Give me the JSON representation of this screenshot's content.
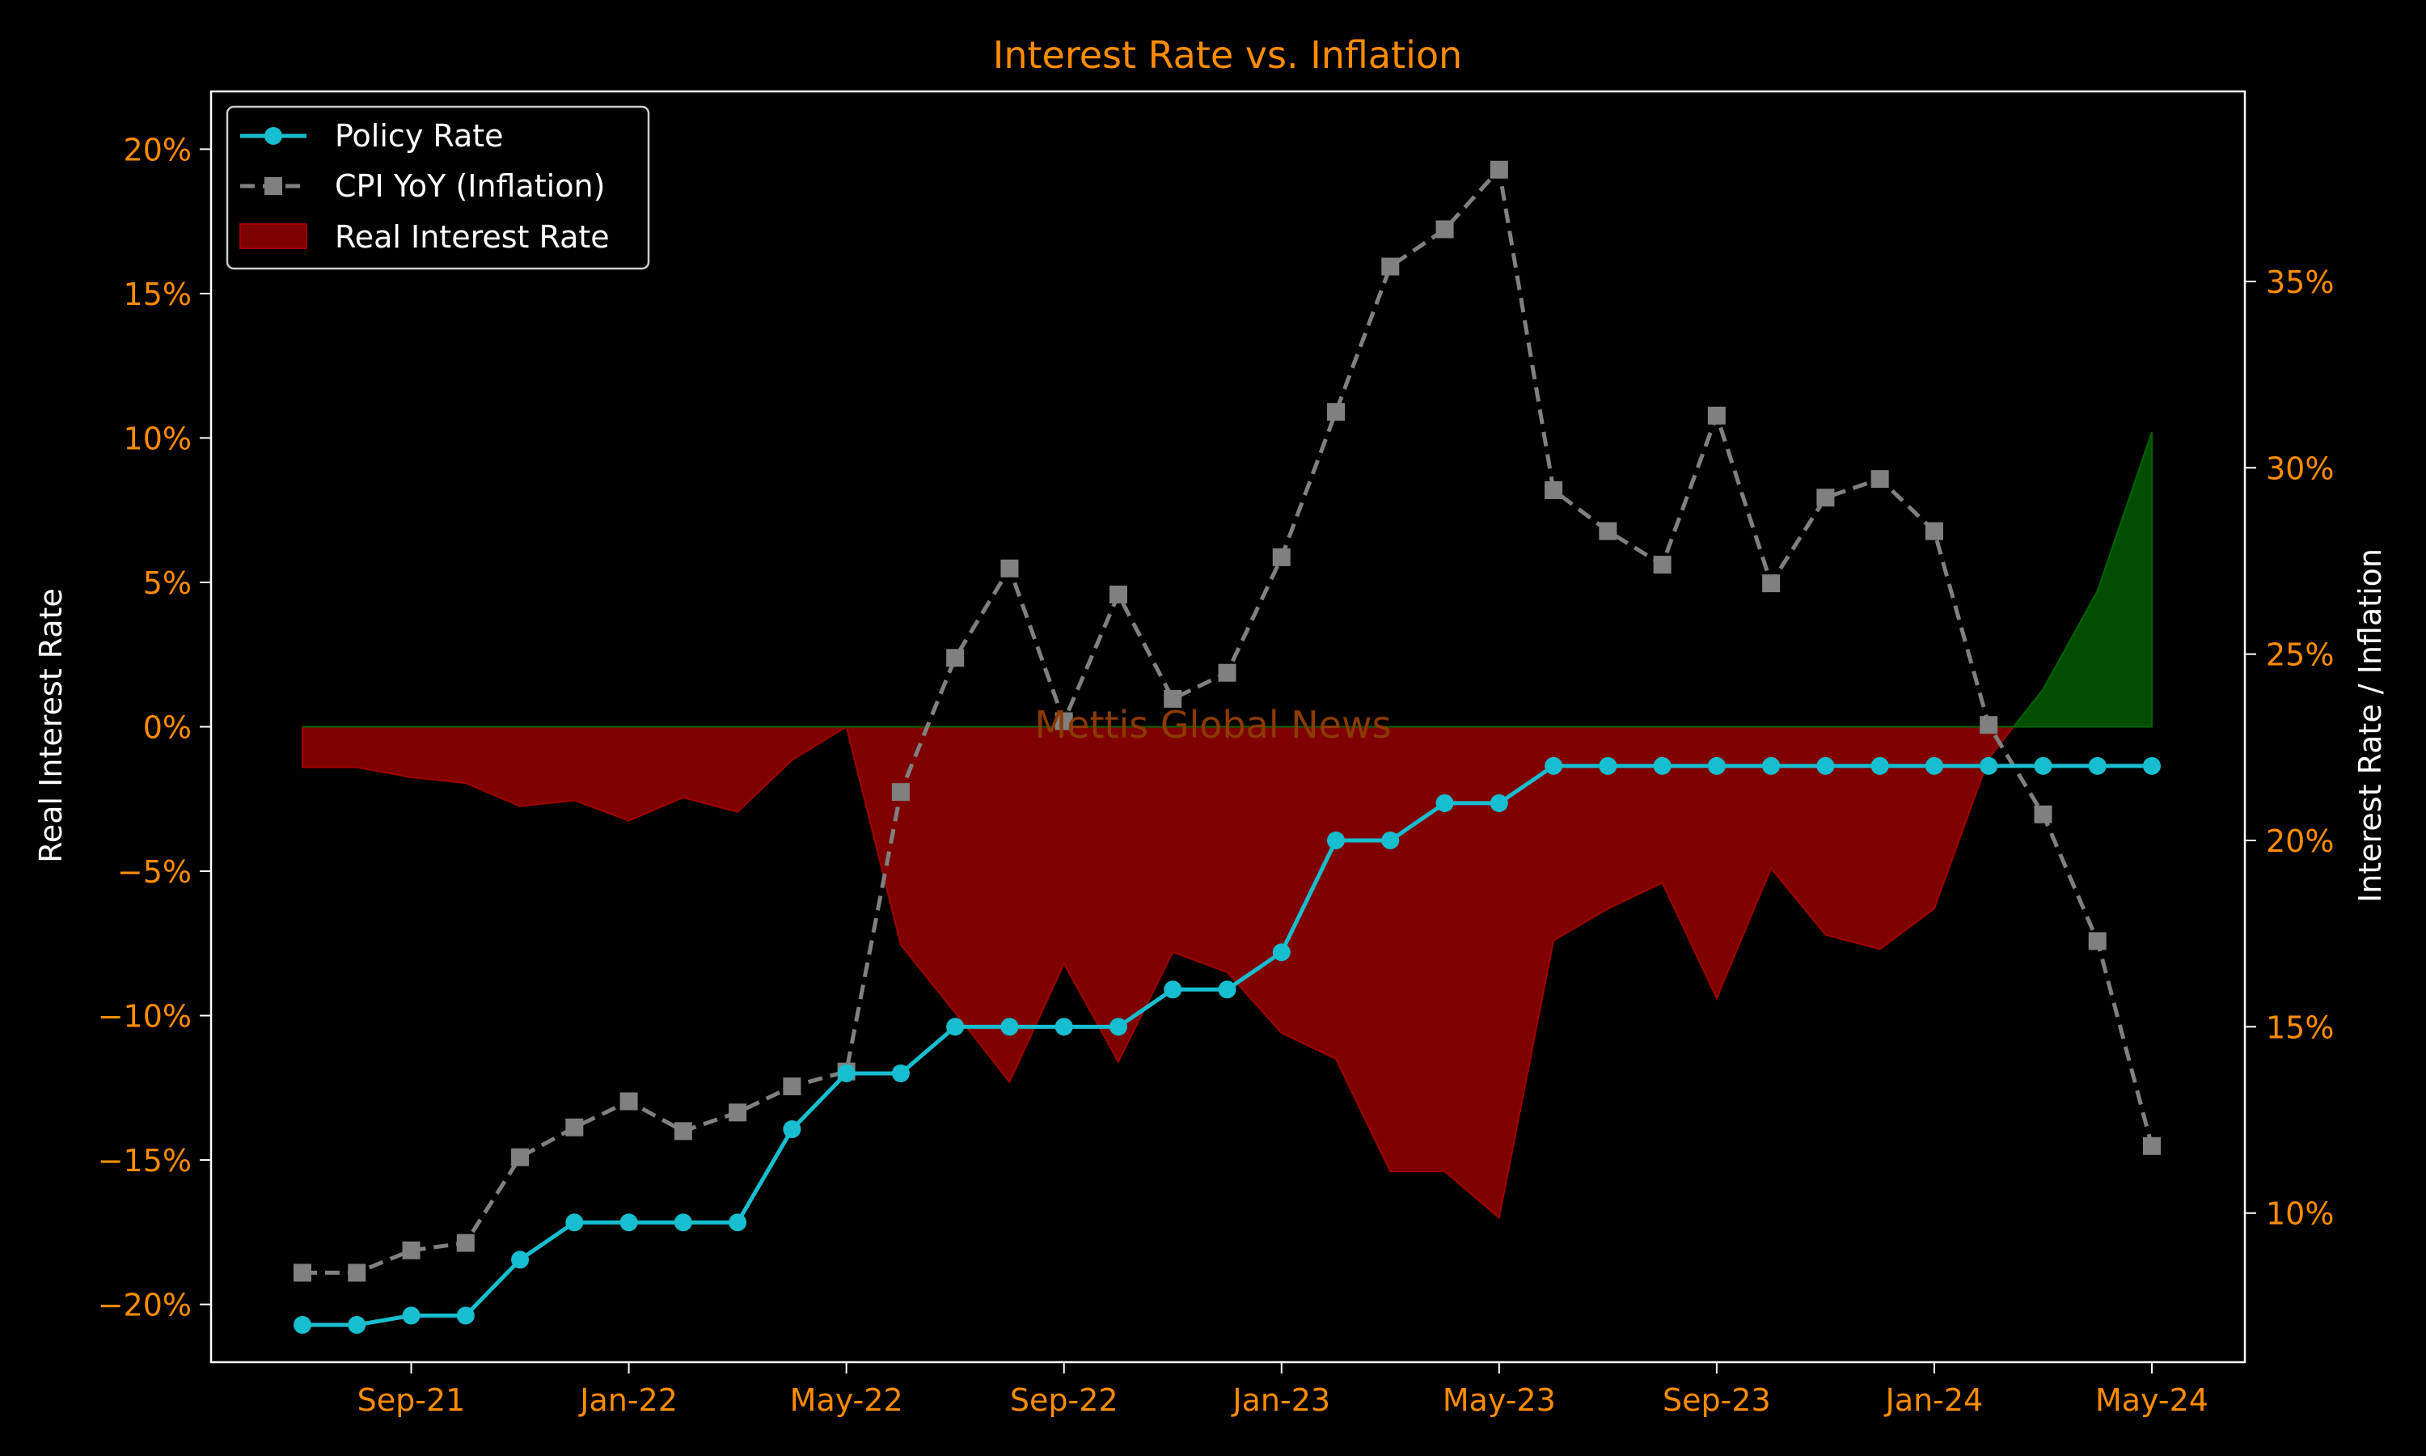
{
  "colors": {
    "background": "#000000",
    "accent_text": "#ff8c00",
    "axis_text": "#ffffff",
    "policy_line": "#17becf",
    "cpi_line": "#808080",
    "negative_fill": "#7f0000",
    "positive_fill": "#004d00",
    "watermark": "#8b3a00"
  },
  "chart_data": {
    "type": "line",
    "title": "Interest Rate vs. Inflation",
    "watermark": "Mettis Global News",
    "left_axis": {
      "label": "Real Interest Rate",
      "range": [
        -22,
        22
      ],
      "ticks": [
        -20,
        -15,
        -10,
        -5,
        0,
        5,
        10,
        15,
        20
      ],
      "tick_labels": [
        "−20%",
        "−15%",
        "−10%",
        "−5%",
        "0%",
        "5%",
        "10%",
        "15%",
        "20%"
      ]
    },
    "right_axis": {
      "label": "Interest Rate / Inflation",
      "range": [
        6.0,
        40.1
      ],
      "ticks": [
        10,
        15,
        20,
        25,
        30,
        35
      ],
      "tick_labels": [
        "10%",
        "15%",
        "20%",
        "25%",
        "30%",
        "35%"
      ]
    },
    "x_axis": {
      "tick_labels": [
        "Sep-21",
        "Jan-22",
        "May-22",
        "Sep-22",
        "Jan-23",
        "May-23",
        "Sep-23",
        "Jan-24",
        "May-24"
      ],
      "tick_months": [
        "2021-09",
        "2022-01",
        "2022-05",
        "2022-09",
        "2023-01",
        "2023-05",
        "2023-09",
        "2024-01",
        "2024-05"
      ]
    },
    "months": [
      "2021-07",
      "2021-08",
      "2021-09",
      "2021-10",
      "2021-11",
      "2021-12",
      "2022-01",
      "2022-02",
      "2022-03",
      "2022-04",
      "2022-05",
      "2022-06",
      "2022-07",
      "2022-08",
      "2022-09",
      "2022-10",
      "2022-11",
      "2022-12",
      "2023-01",
      "2023-02",
      "2023-03",
      "2023-04",
      "2023-05",
      "2023-06",
      "2023-07",
      "2023-08",
      "2023-09",
      "2023-10",
      "2023-11",
      "2023-12",
      "2024-01",
      "2024-02",
      "2024-03",
      "2024-04",
      "2024-05"
    ],
    "legend": {
      "placement": "top-left",
      "entries": [
        "Policy Rate",
        "CPI YoY (Inflation)",
        "Real Interest Rate"
      ]
    },
    "series": [
      {
        "name": "Policy Rate",
        "axis": "right",
        "style": "solid line, circle markers",
        "values": [
          7.0,
          7.0,
          7.25,
          7.25,
          8.75,
          9.75,
          9.75,
          9.75,
          9.75,
          12.25,
          13.75,
          13.75,
          15.0,
          15.0,
          15.0,
          15.0,
          16.0,
          16.0,
          17.0,
          20.0,
          20.0,
          21.0,
          21.0,
          22.0,
          22.0,
          22.0,
          22.0,
          22.0,
          22.0,
          22.0,
          22.0,
          22.0,
          22.0,
          22.0,
          22.0
        ]
      },
      {
        "name": "CPI YoY (Inflation)",
        "axis": "right",
        "style": "dashed line, square markers",
        "values": [
          8.4,
          8.4,
          9.0,
          9.2,
          11.5,
          12.3,
          13.0,
          12.2,
          12.7,
          13.4,
          13.8,
          21.3,
          24.9,
          27.3,
          23.2,
          26.6,
          23.8,
          24.5,
          27.6,
          31.5,
          35.4,
          36.4,
          38.0,
          29.4,
          28.3,
          27.4,
          31.4,
          26.9,
          29.2,
          29.7,
          28.3,
          23.1,
          20.7,
          17.3,
          11.8
        ]
      },
      {
        "name": "Real Interest Rate",
        "axis": "left",
        "style": "filled area to zero (red below, green above)",
        "values": [
          -1.4,
          -1.4,
          -1.75,
          -1.95,
          -2.75,
          -2.55,
          -3.25,
          -2.45,
          -2.95,
          -1.15,
          0.0,
          -7.55,
          -9.9,
          -12.3,
          -8.2,
          -11.6,
          -7.8,
          -8.5,
          -10.6,
          -11.5,
          -15.4,
          -15.4,
          -17.0,
          -7.4,
          -6.3,
          -5.4,
          -9.4,
          -4.9,
          -7.2,
          -7.7,
          -6.3,
          -1.1,
          1.3,
          4.7,
          10.2
        ]
      }
    ]
  }
}
